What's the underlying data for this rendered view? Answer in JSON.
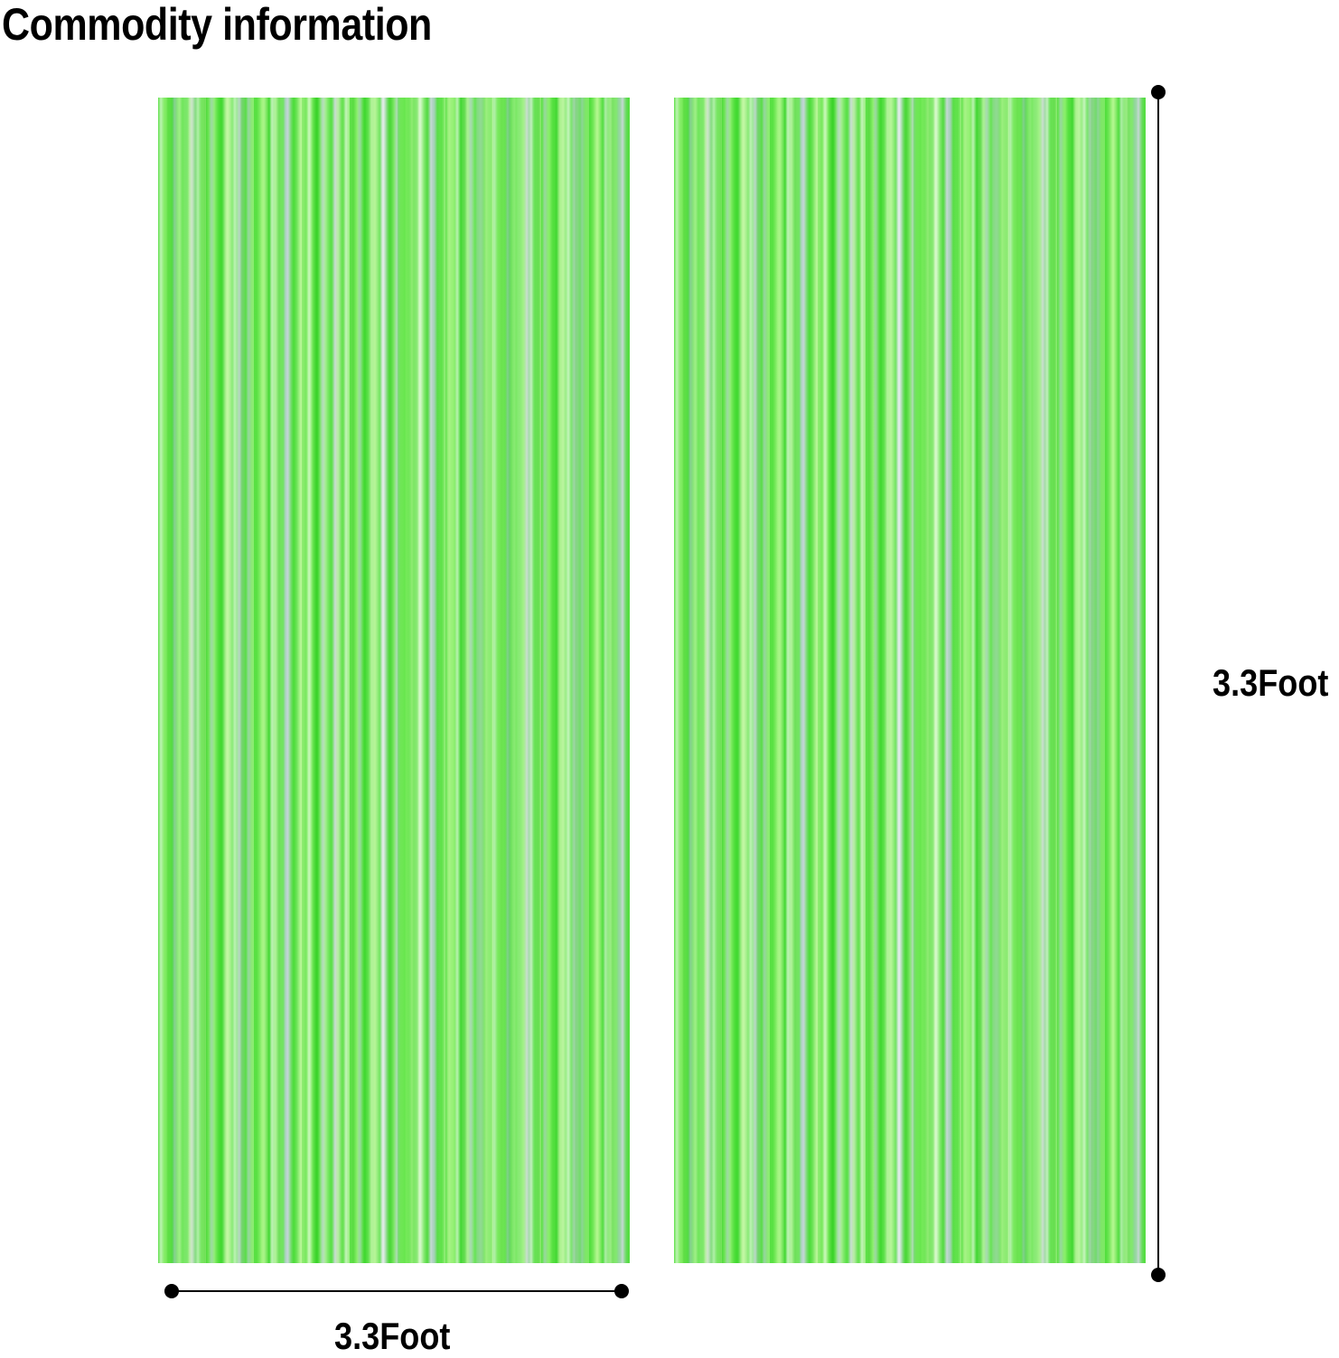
{
  "title": "Commodity information",
  "dimensions": {
    "width_label": "3.3Foot",
    "height_label": "3.3Foot"
  },
  "colors": {
    "curtain": "#6ee25a",
    "text": "#000000"
  }
}
